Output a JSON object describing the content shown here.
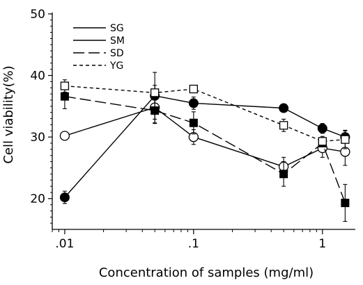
{
  "chart_data": {
    "type": "line",
    "title": "",
    "xlabel": "Concentration of samples (mg/ml)",
    "ylabel": "Cell viability(%)",
    "x_scale": "log",
    "xlim": [
      0.008,
      1.8
    ],
    "ylim": [
      15,
      50
    ],
    "x_ticks": [
      0.01,
      0.1,
      1
    ],
    "x_tick_labels": [
      ".01",
      ".1",
      "1"
    ],
    "y_ticks": [
      20,
      30,
      40,
      50
    ],
    "y_tick_labels": [
      "20",
      "30",
      "40",
      "50"
    ],
    "grid": false,
    "legend_position": "top-left",
    "x": [
      0.01,
      0.05,
      0.1,
      0.5,
      1.0,
      1.5
    ],
    "series": [
      {
        "name": "SG",
        "marker": "open-circle",
        "dash": "solid",
        "values": [
          30.2,
          34.8,
          30.0,
          25.2,
          28.2,
          27.6
        ],
        "errors": [
          0,
          2.6,
          1.2,
          1.5,
          1.5,
          2.2
        ]
      },
      {
        "name": "SM",
        "marker": "filled-circle",
        "dash": "solid",
        "values": [
          20.2,
          36.7,
          35.5,
          34.7,
          31.4,
          30.0
        ],
        "errors": [
          1.0,
          3.8,
          1.0,
          0,
          0.8,
          1.0
        ]
      },
      {
        "name": "SD",
        "marker": "filled-square",
        "dash": "longdash",
        "values": [
          36.6,
          34.3,
          32.3,
          24.0,
          29.0,
          19.3
        ],
        "errors": [
          2.0,
          2.0,
          1.8,
          2.0,
          0.5,
          3.0
        ]
      },
      {
        "name": "YG",
        "marker": "open-square",
        "dash": "dash",
        "values": [
          38.3,
          37.2,
          37.8,
          31.9,
          29.3,
          29.6
        ],
        "errors": [
          1.0,
          1.2,
          0,
          1.0,
          0.8,
          1.5
        ]
      }
    ]
  }
}
